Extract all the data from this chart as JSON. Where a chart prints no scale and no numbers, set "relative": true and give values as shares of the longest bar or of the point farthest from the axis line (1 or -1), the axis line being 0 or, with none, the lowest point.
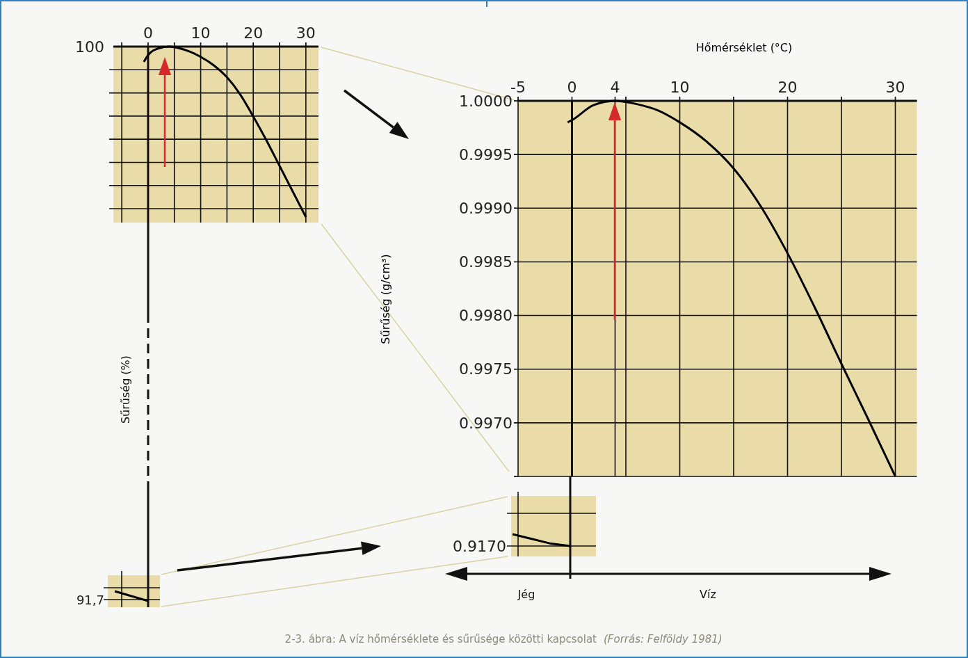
{
  "chart_data": [
    {
      "type": "line",
      "xlabel": "Hőmérséklet (°C)",
      "ylabel": "Sűrűség (g/cm³)",
      "xlim": [
        -5,
        32
      ],
      "ylim": [
        0.9965,
        1.0
      ],
      "xticks": [
        -5,
        0,
        4,
        {
          "value": 5,
          "label": null
        },
        10,
        {
          "value": 15,
          "label": null
        },
        20,
        {
          "value": 25,
          "label": null
        },
        30
      ],
      "yticks": [
        {
          "value": 1.0,
          "label": "1.0000"
        },
        {
          "value": 0.9995,
          "label": "0.9995"
        },
        {
          "value": 0.999,
          "label": "0.9990"
        },
        {
          "value": 0.9985,
          "label": "0.9985"
        },
        {
          "value": 0.998,
          "label": "0.9980"
        },
        {
          "value": 0.9975,
          "label": "0.9975"
        },
        {
          "value": 0.997,
          "label": "0.9970"
        },
        {
          "value": 0.9965,
          "label": null
        }
      ],
      "grid": true,
      "series": [
        {
          "color": "#000000",
          "x": [
            -0.4,
            0,
            2,
            4,
            6,
            8,
            10,
            12.5,
            15,
            17.5,
            20,
            22.5,
            25,
            27.5,
            30
          ],
          "values": [
            0.9998,
            0.99982,
            0.99996,
            1.0,
            0.99997,
            0.99991,
            0.9998,
            0.99962,
            0.99937,
            0.99902,
            0.99858,
            0.99808,
            0.99755,
            0.99703,
            0.9965
          ]
        }
      ],
      "annotations": [
        "Jég",
        "Víz",
        "2-3. ábra: A víz hőmérséklete és sűrűsége közötti kapcsolat",
        "(Forrás: Felföldy 1981)",
        "Sűrűség (%)"
      ]
    },
    {
      "type": "line",
      "relative": true,
      "xlim": [
        -6.6,
        32.4
      ],
      "xticks": [
        {
          "value": -5,
          "label": null
        },
        0,
        {
          "value": 5,
          "label": null
        },
        10,
        {
          "value": 15,
          "label": null
        },
        20,
        {
          "value": 25,
          "label": null
        },
        30
      ],
      "grid": true,
      "series": [
        {
          "color": "#000000",
          "x": [
            -0.8,
            0,
            2,
            4,
            6,
            8,
            10,
            12.5,
            15,
            17.5,
            20,
            22.5,
            25,
            27.5,
            30
          ],
          "values": [
            0.91,
            0.95,
            0.99,
            1.0,
            0.99,
            0.97,
            0.94,
            0.89,
            0.82,
            0.72,
            0.59,
            0.45,
            0.3,
            0.15,
            0
          ]
        }
      ],
      "annotations": [
        "100"
      ]
    },
    {
      "type": "line",
      "relative": true,
      "tick_labels": false,
      "categories": [
        null,
        null,
        null,
        null
      ],
      "grid": true,
      "series": [
        {
          "color": "#000000",
          "values": [
            1,
            0.6,
            0.2,
            0
          ]
        }
      ],
      "annotations": [
        "0.9170"
      ]
    },
    {
      "type": "line",
      "relative": true,
      "tick_labels": false,
      "categories": [
        null,
        null,
        null
      ],
      "grid": true,
      "series": [
        {
          "color": "#000000",
          "values": [
            1,
            0.5,
            0
          ]
        }
      ],
      "annotations": [
        "91,7"
      ]
    }
  ]
}
